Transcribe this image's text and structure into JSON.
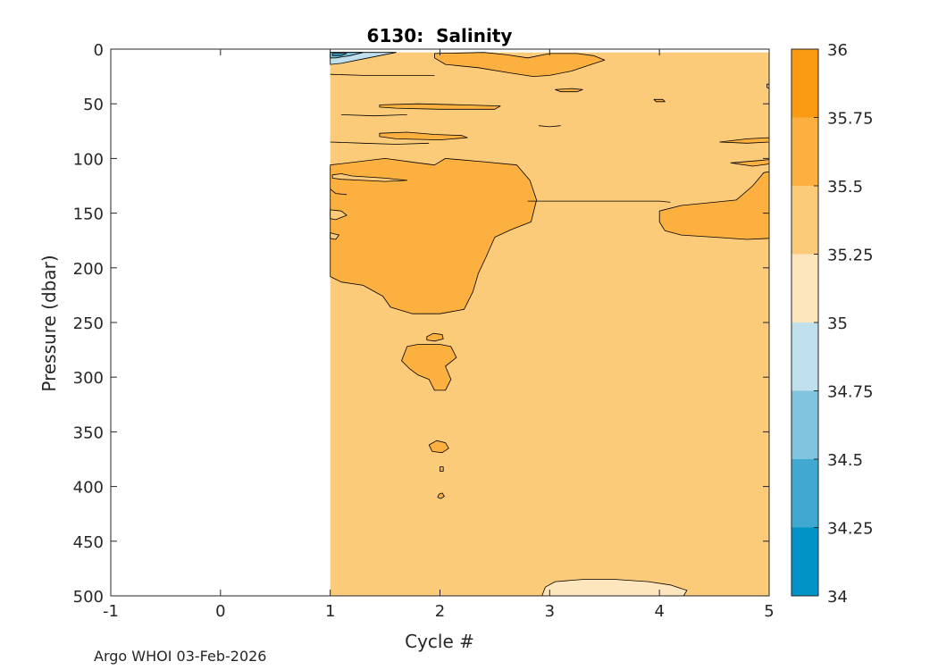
{
  "footer": "Argo WHOI 03-Feb-2026",
  "colors": {
    "levels": [
      "#0093c5",
      "#41a8d0",
      "#80c4e0",
      "#bfe0ec",
      "#fde5bd",
      "#fbcb7a",
      "#fbb03f",
      "#fb9b14"
    ],
    "line": "#000000",
    "background": "#ffffff"
  },
  "chart_data": {
    "type": "heatmap",
    "title": "6130:  Salinity",
    "xlabel": "Cycle #",
    "ylabel": "Pressure (dbar)",
    "xlim": [
      -1,
      5
    ],
    "ylim": [
      0,
      500
    ],
    "y_reversed": true,
    "xticks": [
      "-1",
      "0",
      "1",
      "2",
      "3",
      "4",
      "5"
    ],
    "yticks": [
      "0",
      "50",
      "100",
      "150",
      "200",
      "250",
      "300",
      "350",
      "400",
      "450",
      "500"
    ],
    "data_x_range": [
      1,
      5
    ],
    "data_y_range": [
      3,
      500
    ],
    "colorbar": {
      "range": [
        34,
        36
      ],
      "ticks": [
        "34",
        "34.25",
        "34.5",
        "34.75",
        "35",
        "35.25",
        "35.5",
        "35.75",
        "36"
      ],
      "levels": [
        34,
        34.25,
        34.5,
        34.75,
        35,
        35.25,
        35.5,
        35.75,
        36
      ]
    },
    "background_level": "35.25-35.5",
    "regions": [
      {
        "level": "35.5-35.75",
        "points": [
          [
            1,
            106
          ],
          [
            1.5,
            100
          ],
          [
            1.8,
            104
          ],
          [
            1.95,
            106
          ],
          [
            2.05,
            100
          ],
          [
            2.4,
            103
          ],
          [
            2.7,
            106
          ],
          [
            2.82,
            120
          ],
          [
            2.88,
            138
          ],
          [
            2.83,
            158
          ],
          [
            2.65,
            165
          ],
          [
            2.5,
            172
          ],
          [
            2.42,
            190
          ],
          [
            2.35,
            205
          ],
          [
            2.3,
            222
          ],
          [
            2.22,
            238
          ],
          [
            2.0,
            242
          ],
          [
            1.75,
            242
          ],
          [
            1.55,
            236
          ],
          [
            1.48,
            226
          ],
          [
            1.3,
            216
          ],
          [
            1.1,
            213
          ],
          [
            1.0,
            208
          ]
        ]
      },
      {
        "level": "35.5-35.75",
        "points": [
          [
            1.95,
            4
          ],
          [
            2.4,
            3
          ],
          [
            2.6,
            5
          ],
          [
            2.8,
            8
          ],
          [
            3.0,
            4
          ],
          [
            3.25,
            4
          ],
          [
            3.4,
            6
          ],
          [
            3.5,
            10
          ],
          [
            3.38,
            14
          ],
          [
            3.2,
            20
          ],
          [
            3.0,
            24
          ],
          [
            2.85,
            25
          ],
          [
            2.65,
            22
          ],
          [
            2.35,
            17
          ],
          [
            2.05,
            14
          ],
          [
            1.95,
            8
          ]
        ]
      },
      {
        "level": "35.5-35.75",
        "points": [
          [
            4.0,
            148
          ],
          [
            4.2,
            143
          ],
          [
            4.5,
            140
          ],
          [
            4.7,
            138
          ],
          [
            4.85,
            125
          ],
          [
            4.95,
            113
          ],
          [
            5.0,
            112
          ],
          [
            5.0,
            173
          ],
          [
            4.8,
            174
          ],
          [
            4.5,
            172
          ],
          [
            4.2,
            170
          ],
          [
            4.05,
            166
          ],
          [
            4.0,
            158
          ]
        ]
      },
      {
        "level": "35.5-35.75",
        "points": [
          [
            1.7,
            272
          ],
          [
            1.8,
            270
          ],
          [
            2.0,
            270
          ],
          [
            2.1,
            272
          ],
          [
            2.15,
            282
          ],
          [
            2.05,
            290
          ],
          [
            2.1,
            302
          ],
          [
            2.05,
            312
          ],
          [
            1.95,
            312
          ],
          [
            1.9,
            302
          ],
          [
            1.8,
            298
          ],
          [
            1.72,
            292
          ],
          [
            1.65,
            285
          ]
        ]
      },
      {
        "level": "35.5-35.75",
        "points": [
          [
            1.9,
            362
          ],
          [
            1.97,
            358
          ],
          [
            2.05,
            360
          ],
          [
            2.08,
            365
          ],
          [
            2.02,
            369
          ],
          [
            1.93,
            368
          ]
        ]
      },
      {
        "level": "35.5-35.75",
        "points": [
          [
            1.88,
            263
          ],
          [
            1.94,
            260
          ],
          [
            2.02,
            261
          ],
          [
            2.03,
            265
          ],
          [
            1.95,
            267
          ],
          [
            1.88,
            266
          ]
        ]
      },
      {
        "level": "35.5-35.75",
        "points": [
          [
            1.99,
            407
          ],
          [
            2.02,
            406
          ],
          [
            2.04,
            409
          ],
          [
            2.01,
            411
          ],
          [
            1.98,
            410
          ]
        ]
      },
      {
        "level": "35.5-35.75",
        "points": [
          [
            2.0,
            382
          ],
          [
            2.03,
            382
          ],
          [
            2.03,
            386
          ],
          [
            2.0,
            386
          ]
        ]
      },
      {
        "level": "35.5-35.75",
        "points": [
          [
            1.45,
            77
          ],
          [
            1.7,
            76
          ],
          [
            1.95,
            78
          ],
          [
            2.2,
            79
          ],
          [
            2.25,
            81
          ],
          [
            2.0,
            83
          ],
          [
            1.6,
            82
          ],
          [
            1.45,
            80
          ]
        ]
      },
      {
        "level": "35.5-35.75",
        "points": [
          [
            1.45,
            51
          ],
          [
            1.8,
            50
          ],
          [
            2.2,
            51
          ],
          [
            2.55,
            52
          ],
          [
            2.5,
            55
          ],
          [
            2.0,
            55
          ],
          [
            1.6,
            54
          ],
          [
            1.45,
            53
          ]
        ]
      },
      {
        "level": "35.5-35.75",
        "points": [
          [
            3.05,
            37
          ],
          [
            3.2,
            36
          ],
          [
            3.3,
            37
          ],
          [
            3.25,
            39
          ],
          [
            3.1,
            39
          ]
        ]
      },
      {
        "level": "35.5-35.75",
        "points": [
          [
            3.95,
            46
          ],
          [
            4.03,
            46
          ],
          [
            4.05,
            48
          ],
          [
            3.97,
            48
          ]
        ]
      },
      {
        "level": "35.5-35.75",
        "points": [
          [
            4.55,
            85
          ],
          [
            4.8,
            82
          ],
          [
            5.0,
            81
          ],
          [
            5.0,
            85
          ],
          [
            4.8,
            86
          ]
        ]
      },
      {
        "level": "35.5-35.75",
        "points": [
          [
            4.65,
            104
          ],
          [
            4.9,
            102
          ],
          [
            5.0,
            101
          ],
          [
            5.0,
            105
          ],
          [
            4.85,
            107
          ]
        ]
      },
      {
        "level": "35.5-35.75",
        "points": [
          [
            4.98,
            32
          ],
          [
            5.0,
            32
          ],
          [
            5.0,
            36
          ],
          [
            4.98,
            35
          ]
        ]
      },
      {
        "level": "35.25-35.5",
        "points": [
          [
            1.02,
            115
          ],
          [
            1.1,
            114
          ],
          [
            1.2,
            116
          ],
          [
            1.5,
            118
          ],
          [
            1.7,
            120
          ],
          [
            1.5,
            121
          ],
          [
            1.3,
            120
          ],
          [
            1.1,
            119
          ],
          [
            1.02,
            118
          ]
        ]
      },
      {
        "level": "35.25-35.5",
        "points": [
          [
            1.0,
            147
          ],
          [
            1.1,
            148
          ],
          [
            1.15,
            152
          ],
          [
            1.05,
            156
          ],
          [
            1.0,
            155
          ]
        ]
      },
      {
        "level": "35.25-35.5",
        "points": [
          [
            1.0,
            168
          ],
          [
            1.08,
            170
          ],
          [
            1.05,
            174
          ],
          [
            1.0,
            173
          ]
        ]
      },
      {
        "level": "35.0-35.25",
        "points": [
          [
            2.93,
            500
          ],
          [
            2.96,
            492
          ],
          [
            3.05,
            487
          ],
          [
            3.3,
            485
          ],
          [
            3.6,
            485
          ],
          [
            3.9,
            487
          ],
          [
            4.1,
            490
          ],
          [
            4.25,
            495
          ],
          [
            4.22,
            500
          ]
        ]
      },
      {
        "level": "34.75-35.0",
        "points": [
          [
            1.0,
            3
          ],
          [
            1.6,
            3
          ],
          [
            1.45,
            6
          ],
          [
            1.25,
            10
          ],
          [
            1.1,
            13
          ],
          [
            1.0,
            14
          ]
        ]
      },
      {
        "level": "34.5-34.75",
        "points": [
          [
            1.0,
            3
          ],
          [
            1.3,
            3
          ],
          [
            1.18,
            6
          ],
          [
            1.05,
            8
          ],
          [
            1.0,
            8
          ]
        ]
      },
      {
        "level": "34.25-34.5",
        "points": [
          [
            1.02,
            4
          ],
          [
            1.15,
            4
          ],
          [
            1.1,
            6
          ],
          [
            1.02,
            6
          ]
        ]
      }
    ],
    "contour_lines": [
      {
        "level": 35.5,
        "points": [
          [
            1.0,
            23
          ],
          [
            1.3,
            24
          ],
          [
            1.6,
            24
          ],
          [
            1.95,
            24
          ]
        ]
      },
      {
        "level": 35.5,
        "points": [
          [
            1.0,
            85
          ],
          [
            1.3,
            86
          ],
          [
            1.6,
            87
          ],
          [
            1.9,
            86
          ]
        ]
      },
      {
        "level": 35.5,
        "points": [
          [
            1.1,
            60
          ],
          [
            1.4,
            61
          ],
          [
            1.7,
            60
          ]
        ]
      },
      {
        "level": 35.5,
        "points": [
          [
            2.9,
            70
          ],
          [
            3.0,
            71
          ],
          [
            3.1,
            70
          ]
        ]
      },
      {
        "level": 35.5,
        "points": [
          [
            1.0,
            128
          ],
          [
            1.05,
            132
          ],
          [
            1.15,
            133
          ]
        ]
      },
      {
        "level": 35.5,
        "points": [
          [
            2.8,
            139
          ],
          [
            3.2,
            139
          ],
          [
            3.6,
            139
          ],
          [
            4.0,
            139
          ],
          [
            4.1,
            140
          ]
        ]
      }
    ]
  }
}
